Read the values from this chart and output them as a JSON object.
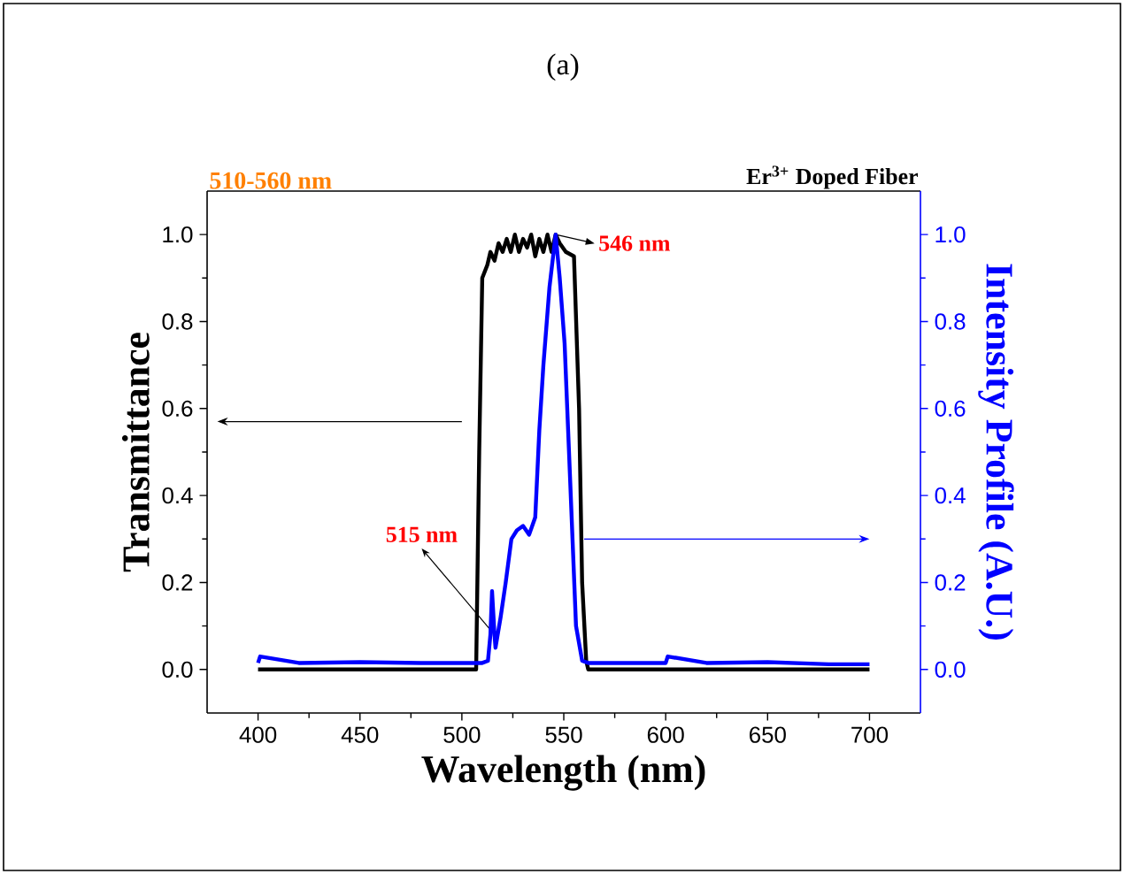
{
  "chart_data": {
    "type": "line",
    "title": "(a)",
    "xlabel": "Wavelength (nm)",
    "ylabel": "Transmittance",
    "y2label": "Intensity Profile (A.U.)",
    "xlim": [
      375,
      725
    ],
    "xticks": [
      400,
      450,
      500,
      550,
      600,
      650,
      700
    ],
    "ylim": [
      -0.1,
      1.1
    ],
    "yticks": [
      {
        "value": 0,
        "label": "0.0"
      },
      0.2,
      0.4,
      0.6,
      0.8,
      {
        "value": 1,
        "label": "1.0"
      }
    ],
    "y2lim": [
      -0.1,
      1.1
    ],
    "y2ticks": [
      {
        "value": 0,
        "label": "0.0"
      },
      0.2,
      0.4,
      0.6,
      0.8,
      {
        "value": 1,
        "label": "1.0"
      }
    ],
    "grid": false,
    "annotations": [
      "510-560 nm",
      "Er$^{3+}$ Doped Fiber",
      {
        "text": "546 nm",
        "x": 546,
        "y": 1.0
      },
      {
        "text": "515 nm",
        "x": 515,
        "y": 0.18
      }
    ],
    "series": [
      {
        "color": "#000000",
        "x": [
          400,
          450,
          500,
          507,
          508.5,
          510,
          512.5,
          514,
          516,
          518,
          520,
          522,
          524,
          526,
          528,
          530,
          532,
          534,
          536,
          538,
          540,
          542,
          544,
          546,
          548,
          551,
          555,
          557.5,
          559,
          561,
          562,
          600,
          650,
          700
        ],
        "values": [
          0.0,
          0.0,
          0.0,
          0.0,
          0.5,
          0.9,
          0.93,
          0.96,
          0.94,
          0.98,
          0.96,
          0.99,
          0.96,
          1.0,
          0.96,
          0.99,
          0.97,
          1.0,
          0.95,
          0.99,
          0.96,
          1.0,
          0.96,
          1.0,
          0.98,
          0.96,
          0.95,
          0.6,
          0.2,
          0.02,
          0.0,
          0.0,
          0.0,
          0.0
        ]
      },
      {
        "color": "#0000ff",
        "axis": "y2",
        "x": [
          400,
          401,
          420,
          450,
          480,
          500,
          510,
          512.8,
          514,
          514.8,
          516,
          516.5,
          519,
          521.5,
          524.3,
          527,
          530,
          533,
          536,
          538,
          540,
          543,
          546,
          548,
          550.4,
          553,
          556,
          559,
          562,
          580,
          600,
          601,
          620,
          650,
          680,
          700
        ],
        "values": [
          0.015,
          0.03,
          0.015,
          0.017,
          0.015,
          0.015,
          0.015,
          0.02,
          0.08,
          0.18,
          0.08,
          0.05,
          0.12,
          0.2,
          0.3,
          0.32,
          0.33,
          0.31,
          0.35,
          0.55,
          0.7,
          0.88,
          1.0,
          0.9,
          0.75,
          0.45,
          0.1,
          0.02,
          0.015,
          0.015,
          0.015,
          0.03,
          0.015,
          0.017,
          0.012,
          0.012
        ]
      }
    ]
  }
}
